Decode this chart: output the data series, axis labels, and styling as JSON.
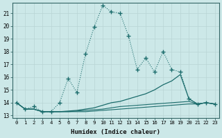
{
  "bg_color": "#cce8e8",
  "grid_color": "#aacccc",
  "line_color": "#1a6b6b",
  "xlabel": "Humidex (Indice chaleur)",
  "xlim": [
    -0.5,
    23.5
  ],
  "ylim": [
    12.8,
    21.8
  ],
  "yticks": [
    13,
    14,
    15,
    16,
    17,
    18,
    19,
    20,
    21
  ],
  "xticks": [
    0,
    1,
    2,
    3,
    4,
    5,
    6,
    7,
    8,
    9,
    10,
    11,
    12,
    13,
    14,
    15,
    16,
    17,
    18,
    19,
    20,
    21,
    22,
    23
  ],
  "main_x": [
    0,
    1,
    2,
    3,
    4,
    5,
    6,
    7,
    8,
    9,
    10,
    11,
    12,
    13,
    14,
    15,
    16,
    17,
    18,
    19,
    20,
    21,
    22,
    23
  ],
  "main_y": [
    14.0,
    13.5,
    13.7,
    13.3,
    13.3,
    14.0,
    15.9,
    14.8,
    17.8,
    19.9,
    21.6,
    21.1,
    21.0,
    19.2,
    16.6,
    17.5,
    16.4,
    18.0,
    16.6,
    16.4,
    14.3,
    13.9,
    14.0,
    13.9
  ],
  "line2_x": [
    0,
    1,
    2,
    3,
    4,
    5,
    6,
    7,
    8,
    9,
    10,
    11,
    12,
    13,
    14,
    15,
    16,
    17,
    18,
    19,
    20,
    21,
    22,
    23
  ],
  "line2_y": [
    14.0,
    13.5,
    13.5,
    13.3,
    13.3,
    13.3,
    13.35,
    13.4,
    13.5,
    13.6,
    13.8,
    14.0,
    14.1,
    14.3,
    14.5,
    14.7,
    15.0,
    15.4,
    15.7,
    16.2,
    14.3,
    13.9,
    14.0,
    13.9
  ],
  "line3_x": [
    0,
    1,
    2,
    3,
    4,
    5,
    6,
    7,
    8,
    9,
    10,
    11,
    12,
    13,
    14,
    15,
    16,
    17,
    18,
    19,
    20,
    21,
    22,
    23
  ],
  "line3_y": [
    14.0,
    13.5,
    13.5,
    13.3,
    13.3,
    13.3,
    13.3,
    13.35,
    13.4,
    13.45,
    13.5,
    13.6,
    13.7,
    13.75,
    13.8,
    13.85,
    13.9,
    13.95,
    14.0,
    14.05,
    14.1,
    13.9,
    14.0,
    13.9
  ],
  "line4_x": [
    0,
    1,
    2,
    3,
    4,
    5,
    6,
    7,
    8,
    9,
    10,
    11,
    12,
    13,
    14,
    15,
    16,
    17,
    18,
    19,
    20,
    21,
    22,
    23
  ],
  "line4_y": [
    14.0,
    13.5,
    13.5,
    13.3,
    13.3,
    13.3,
    13.3,
    13.3,
    13.3,
    13.35,
    13.4,
    13.45,
    13.5,
    13.55,
    13.6,
    13.65,
    13.7,
    13.75,
    13.8,
    13.85,
    13.9,
    13.9,
    14.0,
    13.9
  ]
}
